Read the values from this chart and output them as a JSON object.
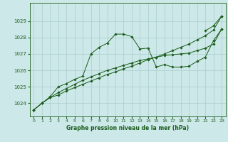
{
  "title": "Graphe pression niveau de la mer (hPa)",
  "bg_color": "#cce8e8",
  "grid_color": "#aacccc",
  "line_color": "#1a5c1a",
  "marker_color": "#1a5c1a",
  "xlim": [
    -0.5,
    23.5
  ],
  "ylim": [
    1023.2,
    1030.1
  ],
  "yticks": [
    1024,
    1025,
    1026,
    1027,
    1028,
    1029
  ],
  "xticks": [
    0,
    1,
    2,
    3,
    4,
    5,
    6,
    7,
    8,
    9,
    10,
    11,
    12,
    13,
    14,
    15,
    16,
    17,
    18,
    19,
    20,
    21,
    22,
    23
  ],
  "series1": [
    1023.6,
    1024.0,
    1024.35,
    1024.5,
    1024.75,
    1024.95,
    1025.15,
    1025.35,
    1025.55,
    1025.75,
    1025.9,
    1026.1,
    1026.25,
    1026.45,
    1026.65,
    1026.8,
    1027.0,
    1027.2,
    1027.4,
    1027.6,
    1027.85,
    1028.1,
    1028.45,
    1029.3
  ],
  "series2": [
    1023.6,
    1024.0,
    1024.35,
    1024.65,
    1024.9,
    1025.15,
    1025.4,
    1025.6,
    1025.8,
    1026.0,
    1026.15,
    1026.3,
    1026.45,
    1026.6,
    1026.7,
    1026.8,
    1026.9,
    1026.95,
    1027.0,
    1027.05,
    1027.2,
    1027.35,
    1027.6,
    1028.5
  ],
  "series3": [
    1023.6,
    1024.0,
    1024.4,
    1025.0,
    1025.2,
    1025.45,
    1025.65,
    1027.0,
    1027.4,
    1027.65,
    1028.2,
    1028.2,
    1028.05,
    1027.3,
    1027.35,
    1026.2,
    1026.35,
    1026.2,
    1026.2,
    1026.25,
    1026.55,
    1026.8,
    1027.8,
    1028.5
  ],
  "series4": [
    null,
    null,
    null,
    null,
    null,
    null,
    null,
    null,
    null,
    null,
    null,
    null,
    null,
    null,
    null,
    null,
    null,
    null,
    null,
    null,
    null,
    1028.4,
    1028.7,
    1029.3
  ]
}
